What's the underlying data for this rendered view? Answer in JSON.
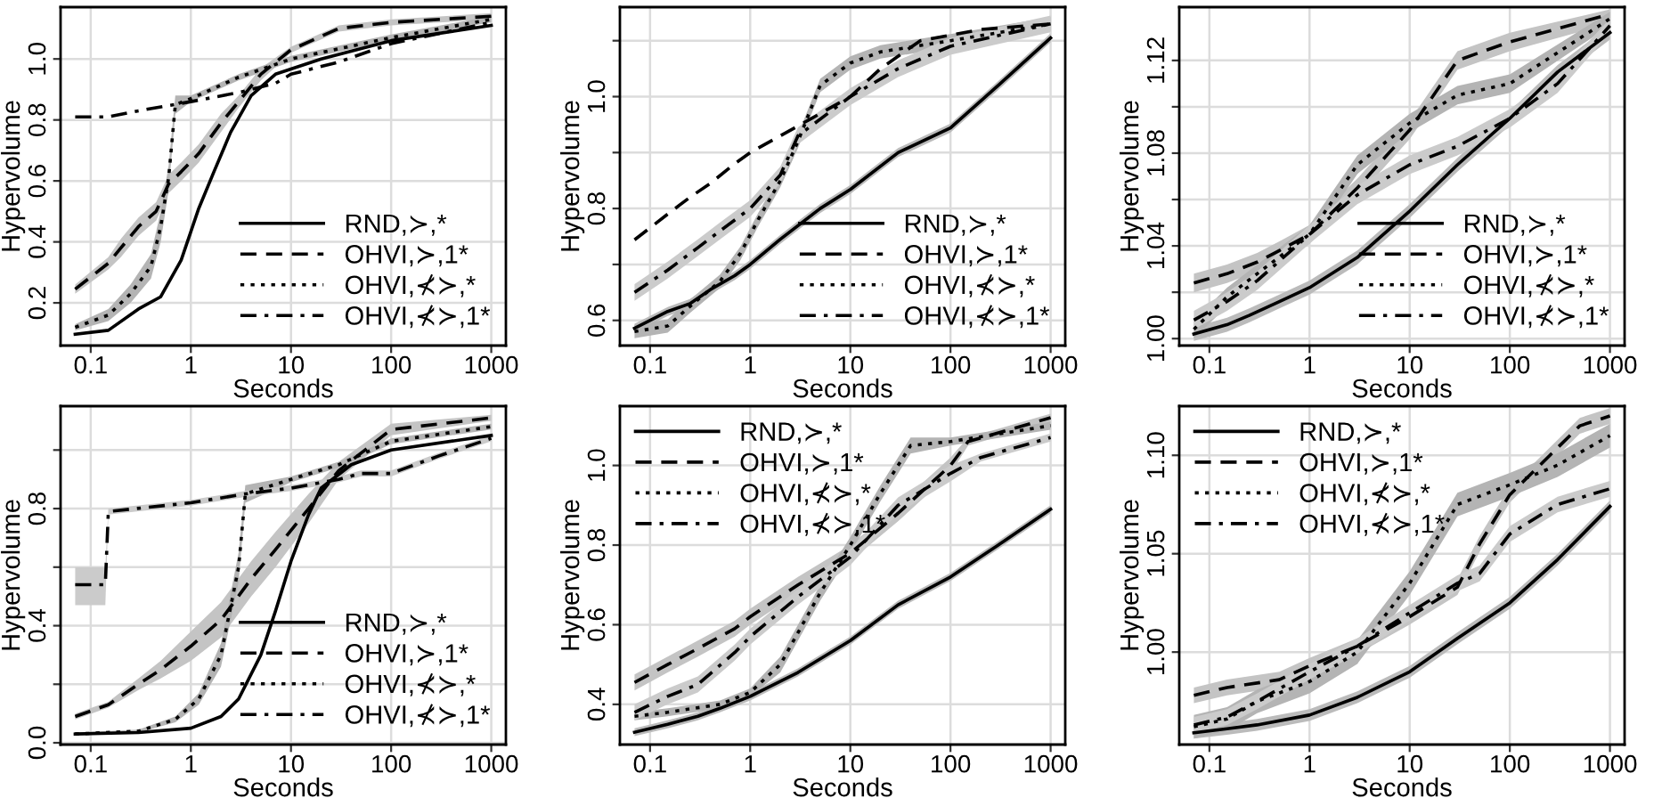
{
  "chart_data": [
    {
      "type": "line",
      "xlabel": "Seconds",
      "ylabel": "Hypervolume",
      "log": "x",
      "grid": true,
      "legend": "bottom right",
      "xlim": [
        0.05,
        1400
      ],
      "xticks": [
        0.1,
        1,
        10,
        100,
        1000
      ],
      "ylim": [
        0.06,
        1.17
      ],
      "yticks": [
        {
          "value": 0.2,
          "label": "0.2"
        },
        {
          "value": 0.4,
          "label": "0.4"
        },
        {
          "value": 0.6,
          "label": "0.6"
        },
        {
          "value": 0.8,
          "label": "0.8"
        },
        {
          "value": 1.0,
          "label": "1.0"
        }
      ],
      "series": [
        {
          "name": "RND,≻,*",
          "color": "#000000",
          "line_style": "solid",
          "x": [
            0.07,
            0.15,
            0.3,
            0.5,
            0.8,
            1.2,
            1.7,
            2.5,
            4,
            7,
            20,
            100,
            1000
          ],
          "values": [
            0.097,
            0.11,
            0.18,
            0.22,
            0.34,
            0.51,
            0.63,
            0.76,
            0.88,
            0.95,
            1.0,
            1.06,
            1.11
          ]
        },
        {
          "name": "OHVI,≻,1*",
          "color": "#000000",
          "line_style": "dashed",
          "x": [
            0.07,
            0.15,
            0.2,
            0.3,
            0.45,
            0.6,
            0.8,
            1.2,
            2,
            3,
            5,
            10,
            30,
            100,
            1000
          ],
          "values": [
            0.245,
            0.33,
            0.38,
            0.45,
            0.5,
            0.59,
            0.63,
            0.69,
            0.79,
            0.86,
            0.95,
            1.03,
            1.1,
            1.12,
            1.14
          ],
          "lower": [
            0.23,
            0.31,
            0.35,
            0.42,
            0.47,
            0.56,
            0.6,
            0.66,
            0.76,
            0.84,
            0.93,
            1.02,
            1.09,
            1.11,
            1.13
          ],
          "upper": [
            0.26,
            0.35,
            0.41,
            0.48,
            0.53,
            0.62,
            0.66,
            0.72,
            0.82,
            0.88,
            0.97,
            1.04,
            1.11,
            1.13,
            1.15
          ]
        },
        {
          "name": "OHVI,⊀≻,*",
          "color": "#000000",
          "line_style": "dotted",
          "x": [
            0.07,
            0.15,
            0.25,
            0.4,
            0.5,
            0.6,
            0.7,
            1,
            3,
            10,
            100,
            1000
          ],
          "values": [
            0.12,
            0.16,
            0.23,
            0.32,
            0.45,
            0.61,
            0.85,
            0.87,
            0.94,
            1.0,
            1.07,
            1.13
          ],
          "lower": [
            0.11,
            0.14,
            0.2,
            0.28,
            0.4,
            0.57,
            0.82,
            0.86,
            0.93,
            0.99,
            1.06,
            1.12
          ],
          "upper": [
            0.13,
            0.18,
            0.26,
            0.36,
            0.5,
            0.65,
            0.88,
            0.88,
            0.95,
            1.01,
            1.08,
            1.14
          ]
        },
        {
          "name": "OHVI,⊀≻,1*",
          "color": "#000000",
          "line_style": "dashdot",
          "x": [
            0.07,
            0.15,
            0.3,
            1,
            3,
            7,
            10,
            30,
            100,
            1000
          ],
          "values": [
            0.81,
            0.81,
            0.83,
            0.86,
            0.89,
            0.92,
            0.95,
            0.99,
            1.05,
            1.12
          ]
        }
      ]
    },
    {
      "type": "line",
      "xlabel": "Seconds",
      "ylabel": "Hypervolume",
      "log": "x",
      "grid": true,
      "legend": "bottom right",
      "xlim": [
        0.05,
        1400
      ],
      "xticks": [
        0.1,
        1,
        10,
        100,
        1000
      ],
      "ylim": [
        0.555,
        1.16
      ],
      "yticks": [
        {
          "value": 0.6,
          "label": "0.6"
        },
        {
          "value": 0.7,
          "label": null
        },
        {
          "value": 0.8,
          "label": "0.8"
        },
        {
          "value": 0.9,
          "label": null
        },
        {
          "value": 1.0,
          "label": "1.0"
        },
        {
          "value": 1.1,
          "label": null
        }
      ],
      "series": [
        {
          "name": "RND,≻,*",
          "color": "#000000",
          "line_style": "solid",
          "x": [
            0.07,
            0.15,
            0.25,
            0.4,
            0.7,
            1,
            2,
            5,
            10,
            30,
            100,
            300,
            1000
          ],
          "values": [
            0.586,
            0.616,
            0.63,
            0.655,
            0.68,
            0.7,
            0.745,
            0.8,
            0.834,
            0.9,
            0.944,
            1.02,
            1.105
          ],
          "lower": [
            0.578,
            0.608,
            0.622,
            0.647,
            0.672,
            0.692,
            0.737,
            0.792,
            0.826,
            0.892,
            0.936,
            1.012,
            1.097
          ],
          "upper": [
            0.594,
            0.624,
            0.638,
            0.663,
            0.688,
            0.708,
            0.753,
            0.808,
            0.842,
            0.908,
            0.952,
            1.028,
            1.113
          ]
        },
        {
          "name": "OHVI,≻,1*",
          "color": "#000000",
          "line_style": "dashed",
          "x": [
            0.07,
            0.15,
            0.25,
            0.4,
            0.7,
            1,
            2,
            4,
            10,
            20,
            50,
            200,
            1000
          ],
          "values": [
            0.744,
            0.79,
            0.82,
            0.845,
            0.88,
            0.9,
            0.93,
            0.96,
            1.0,
            1.05,
            1.1,
            1.12,
            1.13
          ]
        },
        {
          "name": "OHVI,⊀≻,*",
          "color": "#000000",
          "line_style": "dotted",
          "x": [
            0.07,
            0.15,
            0.25,
            0.5,
            0.8,
            1.2,
            2,
            3,
            5,
            10,
            20,
            100,
            1000
          ],
          "values": [
            0.58,
            0.59,
            0.625,
            0.67,
            0.72,
            0.78,
            0.85,
            0.92,
            1.02,
            1.06,
            1.08,
            1.1,
            1.13
          ],
          "lower": [
            0.568,
            0.578,
            0.613,
            0.658,
            0.708,
            0.768,
            0.838,
            0.908,
            1.008,
            1.048,
            1.068,
            1.088,
            1.118
          ],
          "upper": [
            0.592,
            0.602,
            0.637,
            0.682,
            0.732,
            0.792,
            0.862,
            0.932,
            1.032,
            1.072,
            1.092,
            1.112,
            1.142
          ]
        },
        {
          "name": "OHVI,⊀≻,1*",
          "color": "#000000",
          "line_style": "dashdot",
          "x": [
            0.07,
            0.15,
            0.3,
            0.5,
            1,
            2,
            3,
            10,
            30,
            100,
            1000
          ],
          "values": [
            0.65,
            0.69,
            0.73,
            0.76,
            0.8,
            0.86,
            0.93,
            1.0,
            1.05,
            1.09,
            1.13
          ],
          "lower": [
            0.635,
            0.675,
            0.715,
            0.745,
            0.785,
            0.845,
            0.915,
            0.985,
            1.035,
            1.075,
            1.115
          ],
          "upper": [
            0.665,
            0.705,
            0.745,
            0.775,
            0.815,
            0.875,
            0.945,
            1.015,
            1.065,
            1.105,
            1.145
          ]
        }
      ]
    },
    {
      "type": "line",
      "xlabel": "Seconds",
      "ylabel": "Hypervolume",
      "log": "x",
      "grid": true,
      "legend": "bottom right",
      "xlim": [
        0.05,
        1400
      ],
      "xticks": [
        0.1,
        1,
        10,
        100,
        1000
      ],
      "ylim": [
        0.997,
        1.143
      ],
      "yticks": [
        {
          "value": 1.0,
          "label": "1.00"
        },
        {
          "value": 1.02,
          "label": null
        },
        {
          "value": 1.04,
          "label": "1.04"
        },
        {
          "value": 1.06,
          "label": null
        },
        {
          "value": 1.08,
          "label": "1.08"
        },
        {
          "value": 1.1,
          "label": null
        },
        {
          "value": 1.12,
          "label": "1.12"
        }
      ],
      "series": [
        {
          "name": "RND,≻,*",
          "color": "#000000",
          "line_style": "solid",
          "x": [
            0.07,
            0.15,
            0.25,
            0.5,
            1,
            3,
            10,
            30,
            100,
            300,
            1000
          ],
          "values": [
            1.002,
            1.006,
            1.01,
            1.016,
            1.022,
            1.035,
            1.055,
            1.075,
            1.095,
            1.115,
            1.132
          ],
          "lower": [
            0.999,
            1.003,
            1.007,
            1.013,
            1.019,
            1.032,
            1.052,
            1.072,
            1.092,
            1.112,
            1.129
          ],
          "upper": [
            1.005,
            1.009,
            1.013,
            1.019,
            1.025,
            1.038,
            1.058,
            1.078,
            1.098,
            1.118,
            1.135
          ]
        },
        {
          "name": "OHVI,≻,1*",
          "color": "#000000",
          "line_style": "dashed",
          "x": [
            0.07,
            0.15,
            0.3,
            0.5,
            1,
            3,
            10,
            30,
            100,
            1000
          ],
          "values": [
            1.024,
            1.028,
            1.033,
            1.038,
            1.045,
            1.065,
            1.09,
            1.12,
            1.128,
            1.14
          ],
          "lower": [
            1.02,
            1.024,
            1.029,
            1.034,
            1.041,
            1.061,
            1.086,
            1.116,
            1.124,
            1.136
          ],
          "upper": [
            1.028,
            1.032,
            1.037,
            1.042,
            1.049,
            1.069,
            1.094,
            1.124,
            1.132,
            1.142
          ]
        },
        {
          "name": "OHVI,⊀≻,*",
          "color": "#000000",
          "line_style": "dotted",
          "x": [
            0.07,
            0.15,
            0.3,
            1,
            3,
            10,
            30,
            100,
            1000
          ],
          "values": [
            1.004,
            1.018,
            1.028,
            1.045,
            1.075,
            1.093,
            1.105,
            1.11,
            1.138
          ],
          "lower": [
            1.0,
            1.014,
            1.024,
            1.041,
            1.071,
            1.089,
            1.101,
            1.106,
            1.135
          ],
          "upper": [
            1.008,
            1.022,
            1.032,
            1.049,
            1.079,
            1.097,
            1.109,
            1.114,
            1.141
          ]
        },
        {
          "name": "OHVI,⊀≻,1*",
          "color": "#000000",
          "line_style": "dashdot",
          "x": [
            0.07,
            0.15,
            0.3,
            1,
            3,
            10,
            30,
            100,
            300,
            1000
          ],
          "values": [
            1.008,
            1.016,
            1.025,
            1.045,
            1.062,
            1.075,
            1.083,
            1.095,
            1.11,
            1.135
          ],
          "lower": [
            1.004,
            1.012,
            1.021,
            1.041,
            1.058,
            1.071,
            1.079,
            1.091,
            1.106,
            1.132
          ],
          "upper": [
            1.012,
            1.02,
            1.029,
            1.049,
            1.066,
            1.079,
            1.087,
            1.099,
            1.114,
            1.138
          ]
        }
      ]
    },
    {
      "type": "line",
      "xlabel": "Seconds",
      "ylabel": "Hypervolume",
      "log": "x",
      "grid": true,
      "legend": "bottom right",
      "xlim": [
        0.05,
        1400
      ],
      "xticks": [
        0.1,
        1,
        10,
        100,
        1000
      ],
      "ylim": [
        -0.006,
        1.15
      ],
      "yticks": [
        {
          "value": 0.0,
          "label": "0.0"
        },
        {
          "value": 0.2,
          "label": null
        },
        {
          "value": 0.4,
          "label": "0.4"
        },
        {
          "value": 0.6,
          "label": null
        },
        {
          "value": 0.8,
          "label": "0.8"
        },
        {
          "value": 1.0,
          "label": null
        }
      ],
      "series": [
        {
          "name": "RND,≻,*",
          "color": "#000000",
          "line_style": "solid",
          "x": [
            0.07,
            0.3,
            1,
            2,
            3,
            5,
            7,
            10,
            15,
            20,
            40,
            100,
            1000
          ],
          "values": [
            0.03,
            0.035,
            0.05,
            0.09,
            0.15,
            0.3,
            0.45,
            0.62,
            0.78,
            0.87,
            0.95,
            1.0,
            1.05
          ]
        },
        {
          "name": "OHVI,≻,1*",
          "color": "#000000",
          "line_style": "dashed",
          "x": [
            0.07,
            0.15,
            0.3,
            0.5,
            1,
            2,
            4,
            7,
            15,
            30,
            100,
            1000
          ],
          "values": [
            0.09,
            0.13,
            0.2,
            0.25,
            0.33,
            0.42,
            0.56,
            0.66,
            0.8,
            0.93,
            1.07,
            1.11
          ],
          "lower": [
            0.08,
            0.12,
            0.18,
            0.22,
            0.28,
            0.36,
            0.5,
            0.6,
            0.75,
            0.9,
            1.05,
            1.1
          ],
          "upper": [
            0.1,
            0.14,
            0.22,
            0.28,
            0.38,
            0.48,
            0.62,
            0.72,
            0.85,
            0.96,
            1.09,
            1.12
          ]
        },
        {
          "name": "OHVI,⊀≻,*",
          "color": "#000000",
          "line_style": "dotted",
          "x": [
            0.07,
            0.3,
            0.7,
            1.2,
            2,
            3,
            3.5,
            10,
            30,
            100,
            1000
          ],
          "values": [
            0.03,
            0.04,
            0.08,
            0.15,
            0.3,
            0.6,
            0.85,
            0.9,
            0.95,
            1.03,
            1.08
          ],
          "lower": [
            0.025,
            0.035,
            0.07,
            0.13,
            0.26,
            0.55,
            0.82,
            0.89,
            0.94,
            1.02,
            1.07
          ],
          "upper": [
            0.035,
            0.045,
            0.09,
            0.17,
            0.34,
            0.65,
            0.88,
            0.91,
            0.96,
            1.04,
            1.09
          ]
        },
        {
          "name": "OHVI,⊀≻,1*",
          "color": "#000000",
          "line_style": "dashdot",
          "x": [
            0.07,
            0.14,
            0.15,
            1,
            3.5,
            10,
            30,
            50,
            100,
            300,
            1000
          ],
          "values": [
            0.54,
            0.54,
            0.79,
            0.82,
            0.85,
            0.87,
            0.9,
            0.92,
            0.92,
            0.98,
            1.04
          ],
          "lower": [
            0.47,
            0.47,
            0.78,
            0.81,
            0.84,
            0.86,
            0.89,
            0.91,
            0.91,
            0.97,
            1.03
          ],
          "upper": [
            0.6,
            0.6,
            0.8,
            0.83,
            0.86,
            0.88,
            0.91,
            0.93,
            0.93,
            0.99,
            1.05
          ]
        }
      ]
    },
    {
      "type": "line",
      "xlabel": "Seconds",
      "ylabel": "Hypervolume",
      "log": "x",
      "grid": true,
      "legend": "top left",
      "xlim": [
        0.05,
        1400
      ],
      "xticks": [
        0.1,
        1,
        10,
        100,
        1000
      ],
      "ylim": [
        0.299,
        1.149
      ],
      "yticks": [
        {
          "value": 0.4,
          "label": "0.4"
        },
        {
          "value": 0.6,
          "label": "0.6"
        },
        {
          "value": 0.8,
          "label": "0.8"
        },
        {
          "value": 1.0,
          "label": "1.0"
        }
      ],
      "series": [
        {
          "name": "RND,≻,*",
          "color": "#000000",
          "line_style": "solid",
          "x": [
            0.07,
            0.15,
            0.3,
            0.5,
            1,
            3,
            10,
            30,
            100,
            300,
            1000
          ],
          "values": [
            0.33,
            0.35,
            0.37,
            0.39,
            0.42,
            0.48,
            0.56,
            0.65,
            0.72,
            0.8,
            0.89
          ],
          "lower": [
            0.32,
            0.34,
            0.36,
            0.38,
            0.41,
            0.47,
            0.55,
            0.64,
            0.71,
            0.79,
            0.88
          ],
          "upper": [
            0.34,
            0.36,
            0.38,
            0.4,
            0.43,
            0.49,
            0.57,
            0.66,
            0.73,
            0.81,
            0.9
          ]
        },
        {
          "name": "OHVI,≻,1*",
          "color": "#000000",
          "line_style": "dashed",
          "x": [
            0.07,
            0.15,
            0.3,
            0.7,
            1,
            3,
            10,
            30,
            100,
            150,
            1000
          ],
          "values": [
            0.455,
            0.5,
            0.54,
            0.59,
            0.62,
            0.7,
            0.78,
            0.88,
            1.0,
            1.06,
            1.12
          ],
          "lower": [
            0.435,
            0.48,
            0.52,
            0.57,
            0.6,
            0.68,
            0.76,
            0.86,
            0.98,
            1.05,
            1.11
          ],
          "upper": [
            0.475,
            0.52,
            0.56,
            0.61,
            0.64,
            0.72,
            0.8,
            0.9,
            1.02,
            1.07,
            1.13
          ]
        },
        {
          "name": "OHVI,⊀≻,*",
          "color": "#000000",
          "line_style": "dotted",
          "x": [
            0.07,
            0.15,
            0.5,
            1,
            2,
            3,
            5,
            10,
            20,
            40,
            100,
            1000
          ],
          "values": [
            0.37,
            0.38,
            0.4,
            0.43,
            0.5,
            0.58,
            0.68,
            0.8,
            0.93,
            1.05,
            1.06,
            1.1
          ],
          "lower": [
            0.36,
            0.37,
            0.39,
            0.42,
            0.48,
            0.56,
            0.66,
            0.78,
            0.91,
            1.03,
            1.05,
            1.09
          ],
          "upper": [
            0.38,
            0.39,
            0.41,
            0.44,
            0.52,
            0.6,
            0.7,
            0.82,
            0.95,
            1.07,
            1.07,
            1.11
          ]
        },
        {
          "name": "OHVI,⊀≻,1*",
          "color": "#000000",
          "line_style": "dashdot",
          "x": [
            0.07,
            0.15,
            0.3,
            0.7,
            1,
            3,
            10,
            30,
            100,
            200,
            1000
          ],
          "values": [
            0.38,
            0.42,
            0.45,
            0.53,
            0.57,
            0.67,
            0.77,
            0.9,
            0.98,
            1.02,
            1.07
          ],
          "lower": [
            0.36,
            0.4,
            0.43,
            0.51,
            0.55,
            0.65,
            0.75,
            0.88,
            0.96,
            1.01,
            1.06
          ],
          "upper": [
            0.4,
            0.44,
            0.47,
            0.55,
            0.59,
            0.69,
            0.79,
            0.92,
            1.0,
            1.03,
            1.08
          ]
        }
      ]
    },
    {
      "type": "line",
      "xlabel": "Seconds",
      "ylabel": "Hypervolume",
      "log": "x",
      "grid": true,
      "legend": "top left",
      "xlim": [
        0.05,
        1400
      ],
      "xticks": [
        0.1,
        1,
        10,
        100,
        1000
      ],
      "ylim": [
        0.953,
        1.125
      ],
      "yticks": [
        {
          "value": 1.0,
          "label": "1.00"
        },
        {
          "value": 1.05,
          "label": "1.05"
        },
        {
          "value": 1.1,
          "label": "1.10"
        }
      ],
      "series": [
        {
          "name": "RND,≻,*",
          "color": "#000000",
          "line_style": "solid",
          "x": [
            0.07,
            0.15,
            0.3,
            1,
            3,
            10,
            30,
            100,
            300,
            1000
          ],
          "values": [
            0.959,
            0.961,
            0.963,
            0.968,
            0.977,
            0.99,
            1.007,
            1.025,
            1.047,
            1.074
          ],
          "lower": [
            0.956,
            0.958,
            0.96,
            0.965,
            0.974,
            0.987,
            1.004,
            1.022,
            1.044,
            1.071
          ],
          "upper": [
            0.962,
            0.964,
            0.966,
            0.971,
            0.98,
            0.993,
            1.01,
            1.028,
            1.05,
            1.077
          ]
        },
        {
          "name": "OHVI,≻,1*",
          "color": "#000000",
          "line_style": "dashed",
          "x": [
            0.07,
            0.15,
            0.5,
            1,
            3,
            10,
            30,
            50,
            100,
            200,
            500,
            1000
          ],
          "values": [
            0.978,
            0.982,
            0.986,
            0.993,
            1.003,
            1.018,
            1.033,
            1.055,
            1.08,
            1.095,
            1.115,
            1.12
          ],
          "lower": [
            0.974,
            0.978,
            0.982,
            0.989,
            0.999,
            1.014,
            1.029,
            1.051,
            1.076,
            1.091,
            1.111,
            1.116
          ],
          "upper": [
            0.982,
            0.986,
            0.99,
            0.997,
            1.007,
            1.022,
            1.037,
            1.059,
            1.084,
            1.099,
            1.119,
            1.124
          ]
        },
        {
          "name": "OHVI,⊀≻,*",
          "color": "#000000",
          "line_style": "dotted",
          "x": [
            0.07,
            0.15,
            0.3,
            1,
            3,
            10,
            30,
            100,
            300,
            1000
          ],
          "values": [
            0.962,
            0.966,
            0.975,
            0.985,
            1.0,
            1.035,
            1.075,
            1.085,
            1.095,
            1.11
          ],
          "lower": [
            0.956,
            0.96,
            0.969,
            0.979,
            0.994,
            1.029,
            1.069,
            1.079,
            1.089,
            1.104
          ],
          "upper": [
            0.968,
            0.972,
            0.981,
            0.991,
            1.006,
            1.041,
            1.081,
            1.091,
            1.101,
            1.116
          ]
        },
        {
          "name": "OHVI,⊀≻,1*",
          "color": "#000000",
          "line_style": "dashdot",
          "x": [
            0.07,
            0.15,
            0.3,
            1,
            3,
            10,
            30,
            50,
            100,
            300,
            1000
          ],
          "values": [
            0.963,
            0.967,
            0.975,
            0.99,
            1.003,
            1.02,
            1.035,
            1.04,
            1.06,
            1.075,
            1.083
          ],
          "lower": [
            0.959,
            0.963,
            0.971,
            0.986,
            0.999,
            1.016,
            1.031,
            1.036,
            1.056,
            1.071,
            1.079
          ],
          "upper": [
            0.967,
            0.971,
            0.979,
            0.994,
            1.007,
            1.024,
            1.039,
            1.044,
            1.064,
            1.079,
            1.087
          ]
        }
      ]
    }
  ]
}
